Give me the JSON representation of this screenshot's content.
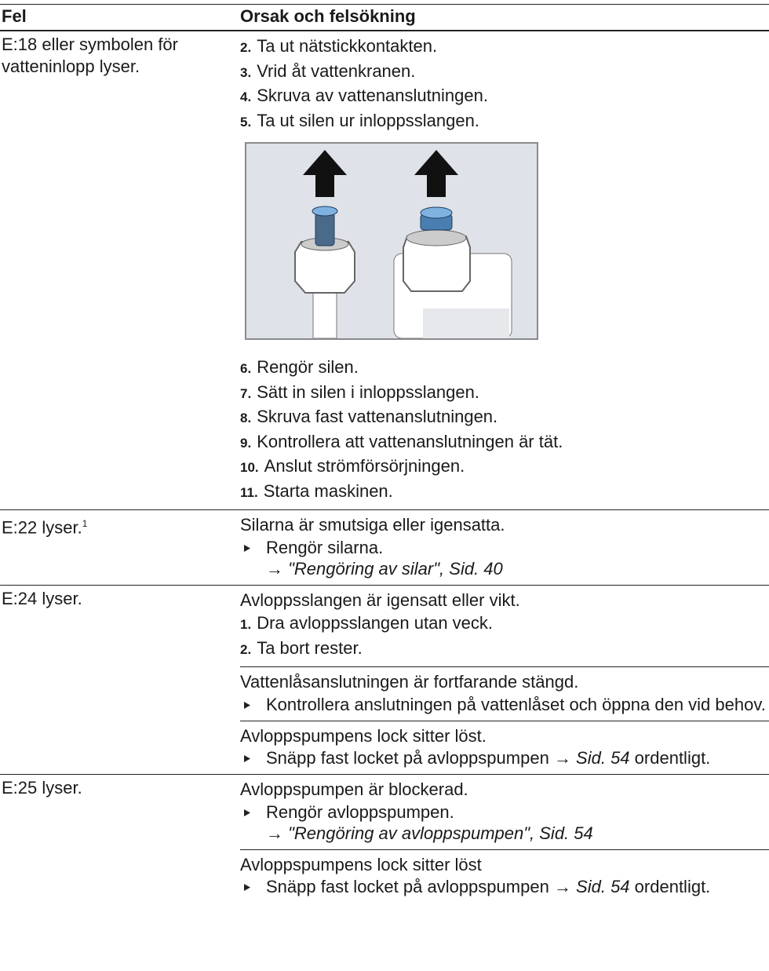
{
  "table": {
    "headers": [
      "Fel",
      "Orsak och felsökning"
    ],
    "rows": [
      {
        "fault": "E:18 eller symbolen för vatteninlopp lyser.",
        "causes": [
          {
            "steps": [
              {
                "num": "2.",
                "text": "Ta ut nätstickkontakten."
              },
              {
                "num": "3.",
                "text": "Vrid åt vattenkranen."
              },
              {
                "num": "4.",
                "text": "Skruva av vattenanslutningen."
              },
              {
                "num": "5.",
                "text": "Ta ut silen ur inloppsslangen."
              }
            ],
            "steps_after": [
              {
                "num": "6.",
                "text": "Rengör silen."
              },
              {
                "num": "7.",
                "text": "Sätt in silen i inloppsslangen."
              },
              {
                "num": "8.",
                "text": "Skruva fast vattenanslutningen."
              },
              {
                "num": "9.",
                "text": "Kontrollera att vattenanslutningen är tät."
              },
              {
                "num": "10.",
                "text": "Anslut strömförsörjningen."
              },
              {
                "num": "11.",
                "text": "Starta maskinen."
              }
            ]
          }
        ]
      },
      {
        "fault": "E:22 lyser.",
        "footnote": "1",
        "causes": [
          {
            "cause": "Silarna är smutsiga eller igensatta.",
            "action": "Rengör silarna.",
            "ref": "→ \"Rengöring av silar\", Sid. 40"
          }
        ]
      },
      {
        "fault": "E:24 lyser.",
        "causes": [
          {
            "cause": "Avloppsslangen är igensatt eller vikt.",
            "steps": [
              {
                "num": "1.",
                "text": "Dra avloppsslangen utan veck."
              },
              {
                "num": "2.",
                "text": "Ta bort rester."
              }
            ]
          },
          {
            "cause": "Vattenlåsanslutningen är fortfarande stängd.",
            "action": "Kontrollera anslutningen på vattenlåset och öppna den vid behov."
          },
          {
            "cause": "Avloppspumpens lock sitter löst.",
            "action": "Snäpp fast locket på avloppspumpen",
            "ref": "→ Sid. 54",
            "action_end": "ordentligt."
          }
        ]
      },
      {
        "fault": "E:25 lyser.",
        "causes": [
          {
            "cause": "Avloppspumpen är blockerad.",
            "action": "Rengör avloppspumpen.",
            "ref": "→ \"Rengöring av avloppspumpen\", Sid. 54"
          },
          {
            "cause": "Avloppspumpens lock sitter löst",
            "action": "Snäpp fast locket på avloppspumpen",
            "ref": "→ Sid. 54",
            "action_end": "ordentligt."
          }
        ]
      }
    ]
  }
}
